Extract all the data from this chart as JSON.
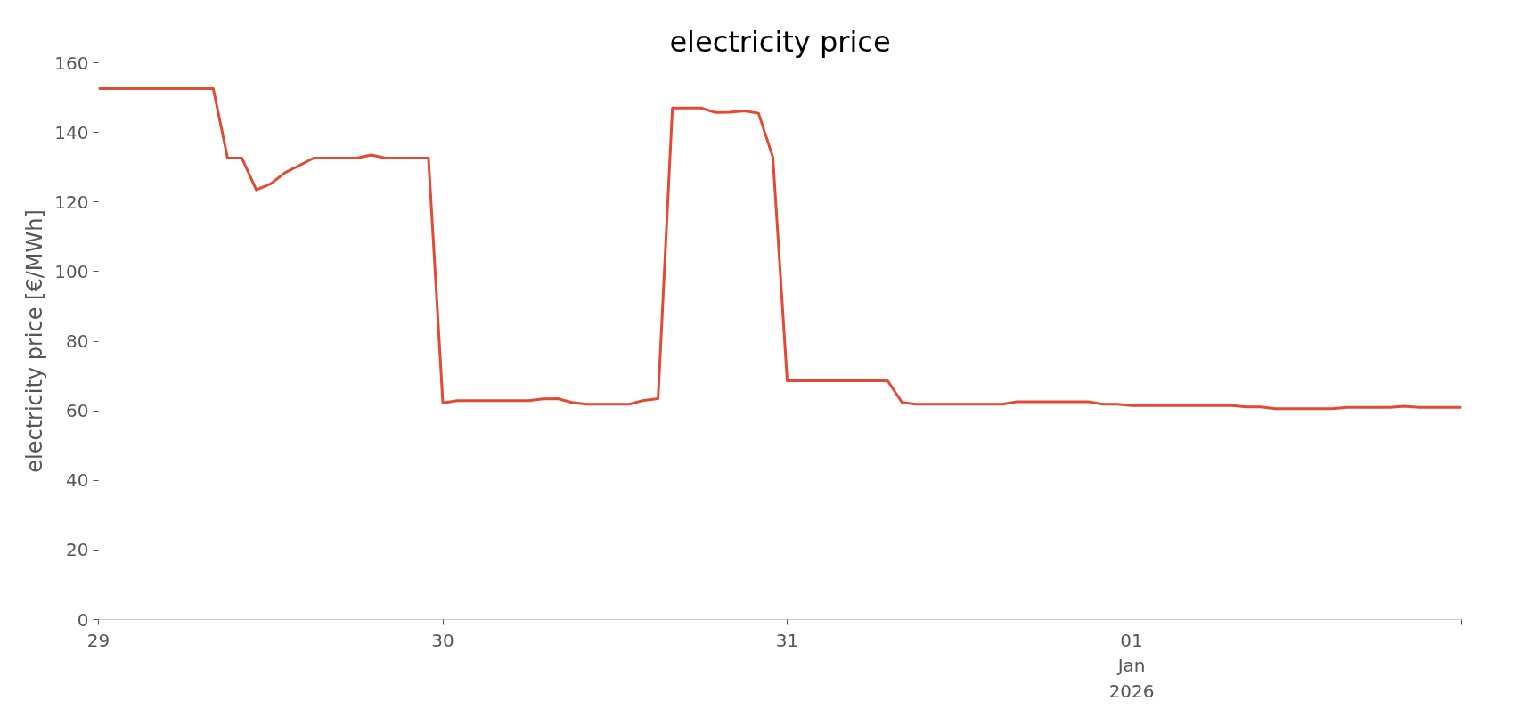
{
  "chart_data": {
    "type": "line",
    "title": "electricity price",
    "ylabel": "electricity price [€/MWh]",
    "x": [
      "2025-12-29T00:00",
      "2025-12-29T08:00",
      "2025-12-29T09:00",
      "2025-12-29T10:00",
      "2025-12-29T11:00",
      "2025-12-29T12:00",
      "2025-12-29T13:00",
      "2025-12-29T14:00",
      "2025-12-29T15:00",
      "2025-12-29T18:00",
      "2025-12-29T19:00",
      "2025-12-29T20:00",
      "2025-12-29T23:00",
      "2025-12-30T00:00",
      "2025-12-30T01:00",
      "2025-12-30T06:00",
      "2025-12-30T07:00",
      "2025-12-30T08:00",
      "2025-12-30T09:00",
      "2025-12-30T10:00",
      "2025-12-30T13:00",
      "2025-12-30T14:00",
      "2025-12-30T15:00",
      "2025-12-30T16:00",
      "2025-12-30T18:00",
      "2025-12-30T19:00",
      "2025-12-30T20:00",
      "2025-12-30T21:00",
      "2025-12-30T22:00",
      "2025-12-30T23:00",
      "2025-12-31T00:00",
      "2025-12-31T07:00",
      "2025-12-31T08:00",
      "2025-12-31T09:00",
      "2025-12-31T15:00",
      "2025-12-31T16:00",
      "2025-12-31T21:00",
      "2025-12-31T22:00",
      "2025-12-31T23:00",
      "2026-01-01T00:00",
      "2026-01-01T07:00",
      "2026-01-01T08:00",
      "2026-01-01T09:00",
      "2026-01-01T10:00",
      "2026-01-01T14:00",
      "2026-01-01T15:00",
      "2026-01-01T18:00",
      "2026-01-01T19:00",
      "2026-01-01T20:00",
      "2026-01-01T23:00"
    ],
    "series": [
      {
        "color": "#e24a33",
        "values": [
          152.6,
          152.6,
          132.6,
          132.6,
          123.5,
          125.2,
          128.4,
          130.5,
          132.6,
          132.6,
          133.5,
          132.6,
          132.6,
          62.3,
          62.9,
          62.9,
          63.4,
          63.5,
          62.4,
          61.9,
          61.9,
          63.0,
          63.5,
          147.0,
          147.0,
          145.7,
          145.8,
          146.2,
          145.5,
          132.9,
          68.6,
          68.6,
          62.4,
          61.9,
          61.9,
          62.6,
          62.6,
          61.9,
          61.9,
          61.5,
          61.5,
          61.1,
          61.1,
          60.6,
          60.6,
          61.0,
          61.0,
          61.3,
          61.0,
          61.0
        ]
      }
    ],
    "xlim": [
      "2025-12-29T00:00",
      "2026-01-01T23:00"
    ],
    "xticks": [
      {
        "value": "2025-12-29",
        "label": "29"
      },
      {
        "value": "2025-12-30",
        "label": "30"
      },
      {
        "value": "2025-12-31",
        "label": "31"
      },
      {
        "value": "2026-01-01",
        "label": "01\nJan\n2026"
      },
      {
        "value": "2026-01-01T23:00",
        "label": null
      }
    ],
    "ylim": [
      0,
      160
    ],
    "yticks": [
      0,
      20,
      40,
      60,
      80,
      100,
      120,
      140,
      160
    ],
    "grid": false,
    "marker": "none",
    "line_style": "solid"
  }
}
